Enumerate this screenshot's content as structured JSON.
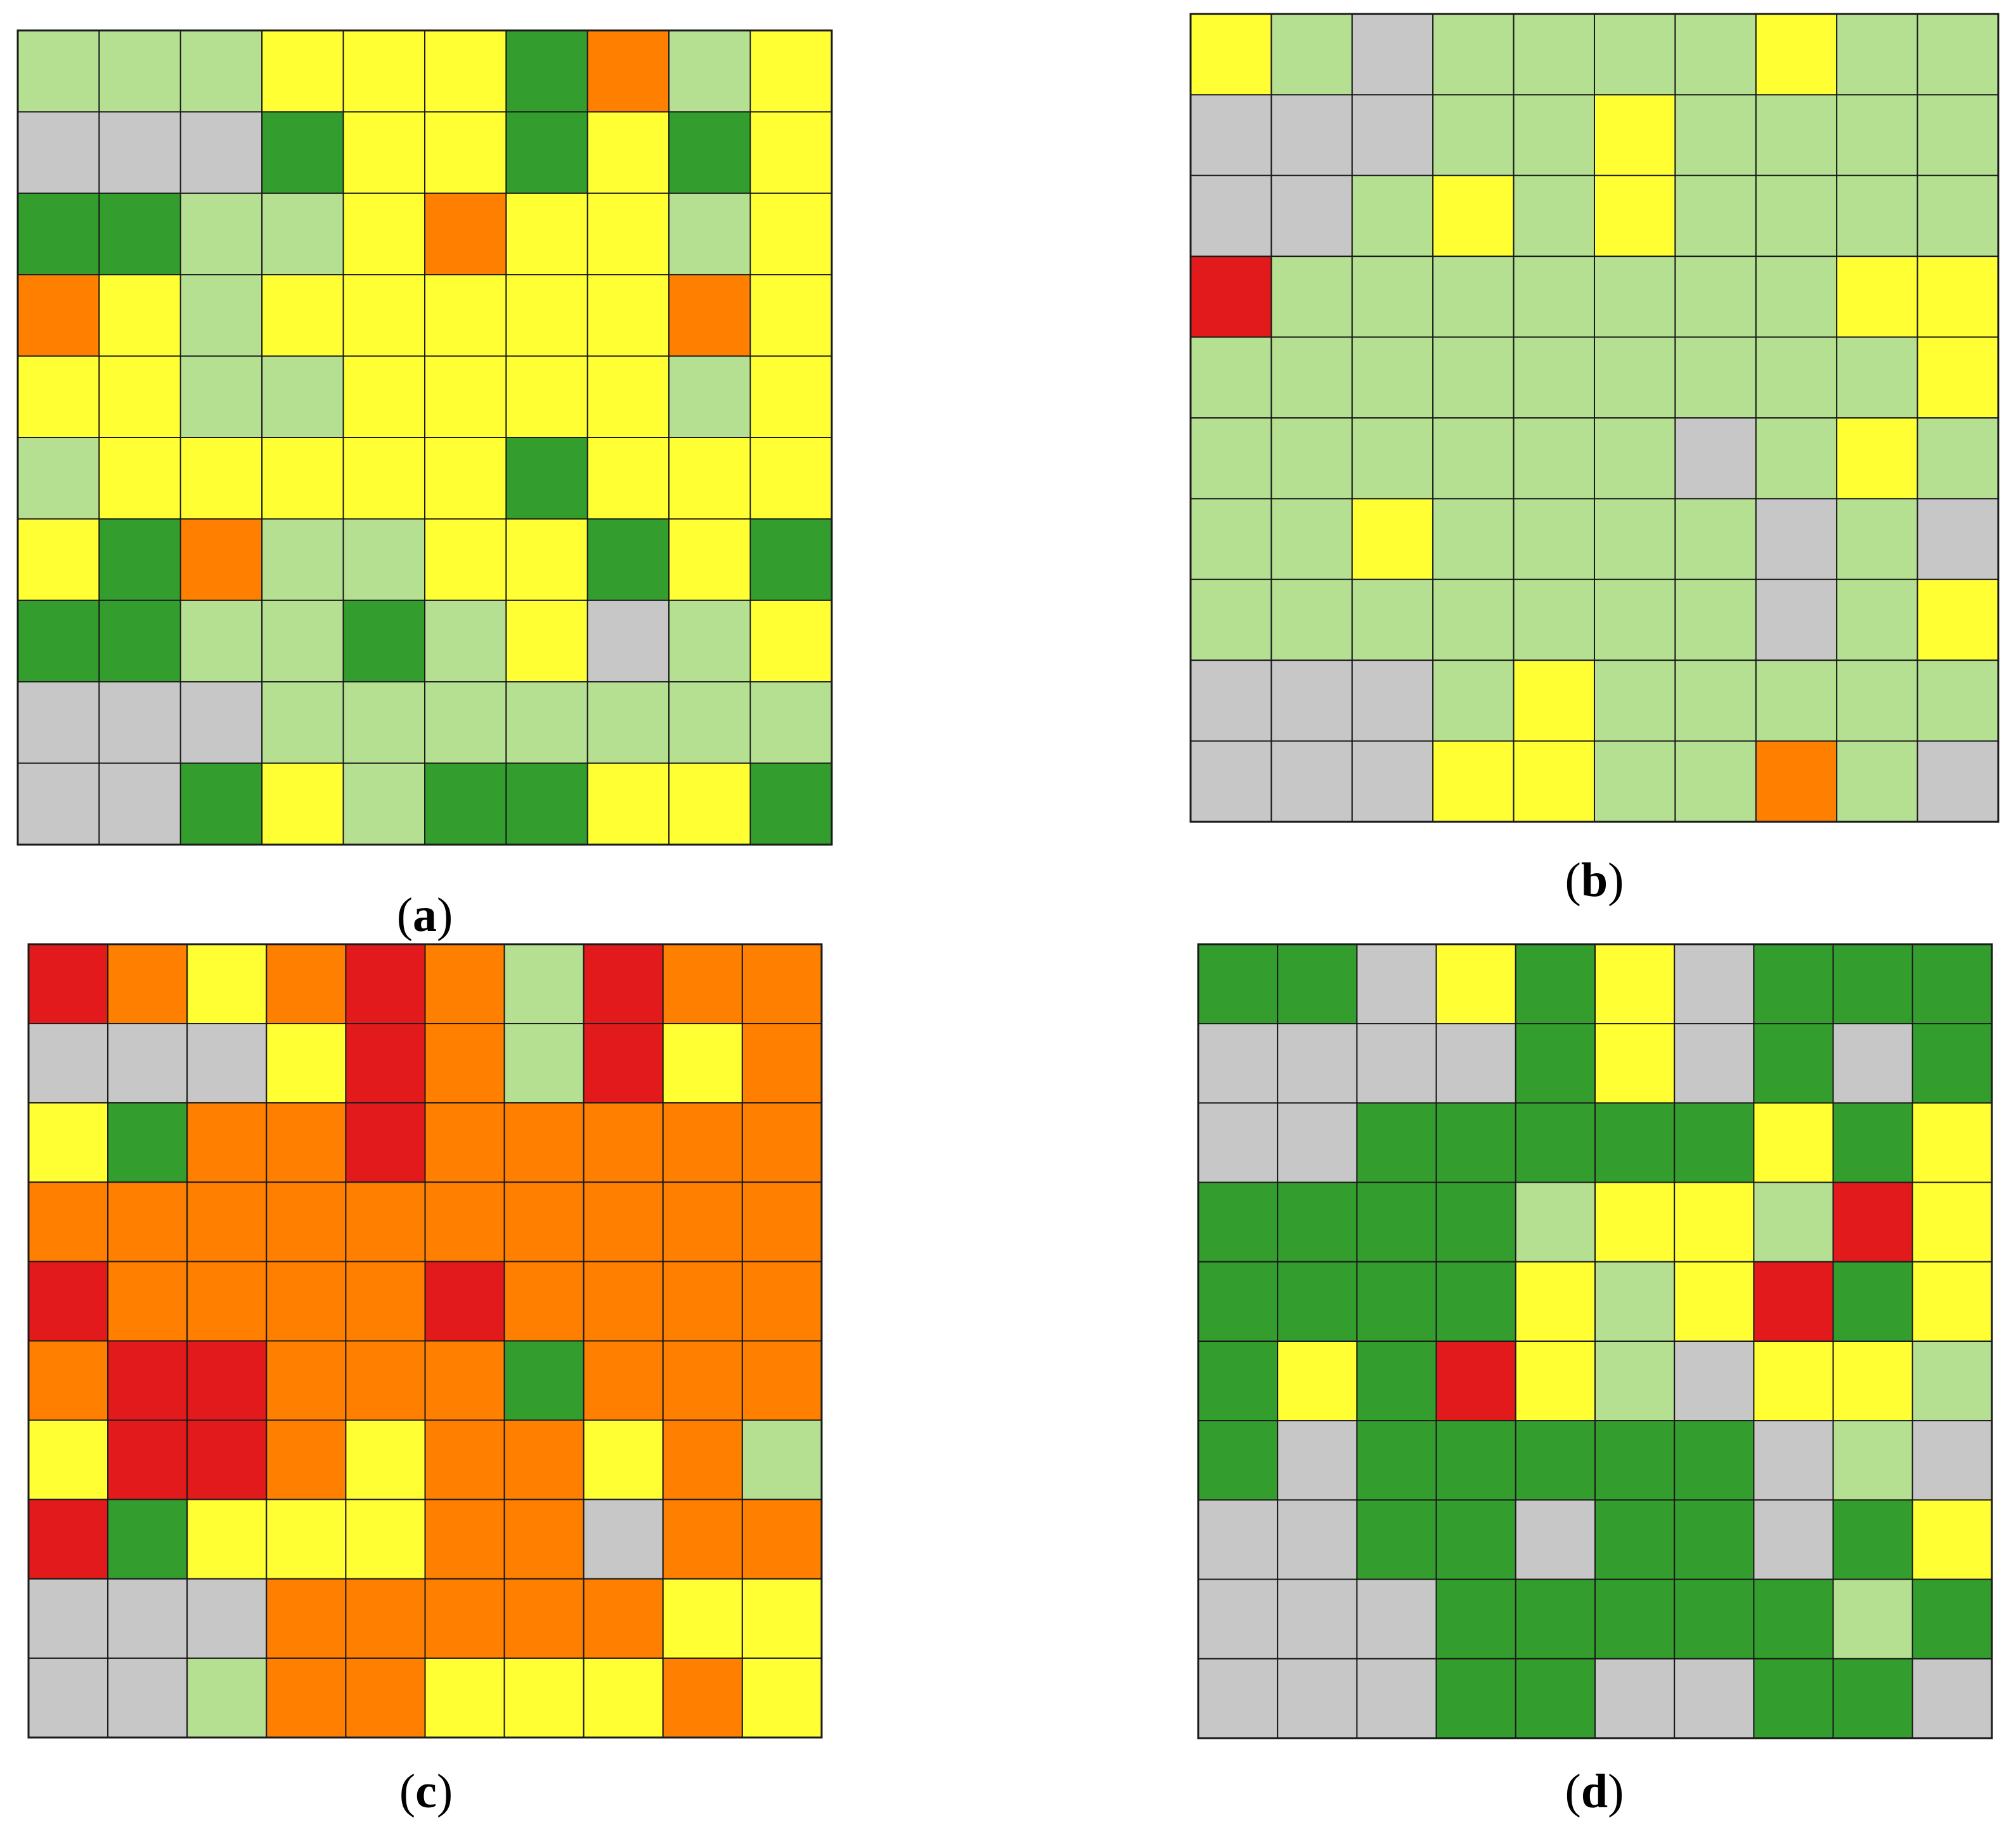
{
  "color_map": {
    "G": "#c7c7c7",
    "L": "#b5e092",
    "D": "#339e2e",
    "Y": "#ffff33",
    "O": "#ff7f00",
    "R": "#e31a1c"
  },
  "chart_data": [
    {
      "type": "heatmap",
      "panel": "a",
      "caption": {
        "open": "(",
        "letter": "a",
        "close": ")"
      },
      "rows": 10,
      "cols": 10,
      "cells": [
        [
          "L",
          "L",
          "L",
          "Y",
          "Y",
          "Y",
          "D",
          "O",
          "L",
          "Y"
        ],
        [
          "G",
          "G",
          "G",
          "D",
          "Y",
          "Y",
          "D",
          "Y",
          "D",
          "Y"
        ],
        [
          "D",
          "D",
          "L",
          "L",
          "Y",
          "O",
          "Y",
          "Y",
          "L",
          "Y"
        ],
        [
          "O",
          "Y",
          "L",
          "Y",
          "Y",
          "Y",
          "Y",
          "Y",
          "O",
          "Y"
        ],
        [
          "Y",
          "Y",
          "L",
          "L",
          "Y",
          "Y",
          "Y",
          "Y",
          "L",
          "Y"
        ],
        [
          "L",
          "Y",
          "Y",
          "Y",
          "Y",
          "Y",
          "D",
          "Y",
          "Y",
          "Y"
        ],
        [
          "Y",
          "D",
          "O",
          "L",
          "L",
          "Y",
          "Y",
          "D",
          "Y",
          "D"
        ],
        [
          "D",
          "D",
          "L",
          "L",
          "D",
          "L",
          "Y",
          "G",
          "L",
          "Y"
        ],
        [
          "G",
          "G",
          "G",
          "L",
          "L",
          "L",
          "L",
          "L",
          "L",
          "L"
        ],
        [
          "G",
          "G",
          "D",
          "Y",
          "L",
          "D",
          "D",
          "Y",
          "Y",
          "D"
        ]
      ]
    },
    {
      "type": "heatmap",
      "panel": "b",
      "caption": {
        "open": "(",
        "letter": "b",
        "close": ")"
      },
      "rows": 10,
      "cols": 10,
      "cells": [
        [
          "Y",
          "L",
          "G",
          "L",
          "L",
          "L",
          "L",
          "Y",
          "L",
          "L"
        ],
        [
          "G",
          "G",
          "G",
          "L",
          "L",
          "Y",
          "L",
          "L",
          "L",
          "L"
        ],
        [
          "G",
          "G",
          "L",
          "Y",
          "L",
          "Y",
          "L",
          "L",
          "L",
          "L"
        ],
        [
          "R",
          "L",
          "L",
          "L",
          "L",
          "L",
          "L",
          "L",
          "Y",
          "Y"
        ],
        [
          "L",
          "L",
          "L",
          "L",
          "L",
          "L",
          "L",
          "L",
          "L",
          "Y"
        ],
        [
          "L",
          "L",
          "L",
          "L",
          "L",
          "L",
          "G",
          "L",
          "Y",
          "L"
        ],
        [
          "L",
          "L",
          "Y",
          "L",
          "L",
          "L",
          "L",
          "G",
          "L",
          "G"
        ],
        [
          "L",
          "L",
          "L",
          "L",
          "L",
          "L",
          "L",
          "G",
          "L",
          "Y"
        ],
        [
          "G",
          "G",
          "G",
          "L",
          "Y",
          "L",
          "L",
          "L",
          "L",
          "L"
        ],
        [
          "G",
          "G",
          "G",
          "Y",
          "Y",
          "L",
          "L",
          "O",
          "L",
          "G"
        ]
      ]
    },
    {
      "type": "heatmap",
      "panel": "c",
      "caption": {
        "open": "(",
        "letter": "c",
        "close": ")"
      },
      "rows": 10,
      "cols": 10,
      "cells": [
        [
          "R",
          "O",
          "Y",
          "O",
          "R",
          "O",
          "L",
          "R",
          "O",
          "O"
        ],
        [
          "G",
          "G",
          "G",
          "Y",
          "R",
          "O",
          "L",
          "R",
          "Y",
          "O"
        ],
        [
          "Y",
          "D",
          "O",
          "O",
          "R",
          "O",
          "O",
          "O",
          "O",
          "O"
        ],
        [
          "O",
          "O",
          "O",
          "O",
          "O",
          "O",
          "O",
          "O",
          "O",
          "O"
        ],
        [
          "R",
          "O",
          "O",
          "O",
          "O",
          "R",
          "O",
          "O",
          "O",
          "O"
        ],
        [
          "O",
          "R",
          "R",
          "O",
          "O",
          "O",
          "D",
          "O",
          "O",
          "O"
        ],
        [
          "Y",
          "R",
          "R",
          "O",
          "Y",
          "O",
          "O",
          "Y",
          "O",
          "L"
        ],
        [
          "R",
          "D",
          "Y",
          "Y",
          "Y",
          "O",
          "O",
          "G",
          "O",
          "O"
        ],
        [
          "G",
          "G",
          "G",
          "O",
          "O",
          "O",
          "O",
          "O",
          "Y",
          "Y"
        ],
        [
          "G",
          "G",
          "L",
          "O",
          "O",
          "Y",
          "Y",
          "Y",
          "O",
          "Y"
        ]
      ]
    },
    {
      "type": "heatmap",
      "panel": "d",
      "caption": {
        "open": "(",
        "letter": "d",
        "close": ")"
      },
      "rows": 10,
      "cols": 10,
      "cells": [
        [
          "D",
          "D",
          "G",
          "Y",
          "D",
          "Y",
          "G",
          "D",
          "D",
          "D"
        ],
        [
          "G",
          "G",
          "G",
          "G",
          "D",
          "Y",
          "G",
          "D",
          "G",
          "D"
        ],
        [
          "G",
          "G",
          "D",
          "D",
          "D",
          "D",
          "D",
          "Y",
          "D",
          "Y"
        ],
        [
          "D",
          "D",
          "D",
          "D",
          "L",
          "Y",
          "Y",
          "L",
          "R",
          "Y"
        ],
        [
          "D",
          "D",
          "D",
          "D",
          "Y",
          "L",
          "Y",
          "R",
          "D",
          "Y"
        ],
        [
          "D",
          "Y",
          "D",
          "R",
          "Y",
          "L",
          "G",
          "Y",
          "Y",
          "L"
        ],
        [
          "D",
          "G",
          "D",
          "D",
          "D",
          "D",
          "D",
          "G",
          "L",
          "G"
        ],
        [
          "G",
          "G",
          "D",
          "D",
          "G",
          "D",
          "D",
          "G",
          "D",
          "Y"
        ],
        [
          "G",
          "G",
          "G",
          "D",
          "D",
          "D",
          "D",
          "D",
          "L",
          "D"
        ],
        [
          "G",
          "G",
          "G",
          "D",
          "D",
          "G",
          "G",
          "D",
          "D",
          "G"
        ]
      ]
    }
  ]
}
